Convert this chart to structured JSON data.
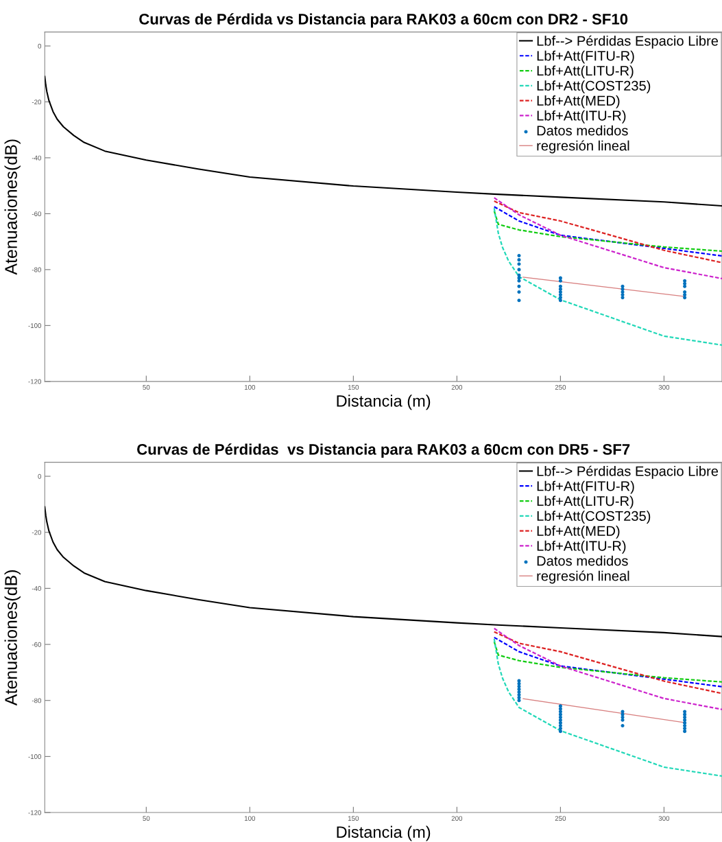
{
  "chart_data": [
    {
      "type": "line",
      "title": "Curvas de Pérdida vs Distancia para RAK03 a 60cm con DR2 - SF10",
      "xlabel": "Distancia (m)",
      "ylabel": "Atenuaciones(dB)",
      "xlim": [
        1,
        328
      ],
      "ylim": [
        -120,
        5
      ],
      "xticks": [
        50,
        100,
        150,
        200,
        250,
        300
      ],
      "yticks": [
        0,
        -20,
        -40,
        -60,
        -80,
        -100,
        -120
      ],
      "grid": false,
      "legend": "top right",
      "series": [
        {
          "name": "Lbf--> Pérdidas Espacio Libre",
          "color": "#000000",
          "line_style": "solid",
          "x": [
            1,
            1.5,
            2,
            3,
            5,
            7,
            10,
            15,
            20,
            30,
            50,
            75,
            100,
            150,
            200,
            218,
            250,
            300,
            328
          ],
          "values": [
            -10.9,
            -14,
            -16.3,
            -19.5,
            -23.5,
            -26.2,
            -28.9,
            -32,
            -34.5,
            -37.6,
            -40.8,
            -44,
            -46.9,
            -50.1,
            -52.3,
            -53,
            -54.1,
            -55.8,
            -57.2
          ]
        },
        {
          "name": "Lbf+Att(FITU-R)",
          "color": "#0000ff",
          "line_style": "dashed",
          "x": [
            218,
            230,
            250,
            300,
            328
          ],
          "values": [
            -57.5,
            -62.6,
            -67.7,
            -72.4,
            -75.1
          ]
        },
        {
          "name": "Lbf+Att(LITU-R)",
          "color": "#11cc11",
          "line_style": "dashed",
          "x": [
            218,
            220,
            230,
            250,
            300,
            328
          ],
          "values": [
            -59,
            -63.8,
            -65.8,
            -68.2,
            -71.9,
            -73.4
          ]
        },
        {
          "name": "Lbf+Att(COST235)",
          "color": "#22d8b8",
          "line_style": "dashed",
          "x": [
            218,
            220,
            222,
            225,
            230,
            250,
            300,
            328
          ],
          "values": [
            -58,
            -67,
            -72,
            -77,
            -82.5,
            -90.8,
            -103.8,
            -107
          ]
        },
        {
          "name": "Lbf+Att(MED)",
          "color": "#dd2222",
          "line_style": "dashed",
          "x": [
            218,
            230,
            250,
            300,
            328
          ],
          "values": [
            -55.5,
            -59.6,
            -62.6,
            -73.1,
            -77.5
          ]
        },
        {
          "name": "Lbf+Att(ITU-R)",
          "color": "#cc22cc",
          "line_style": "dashed",
          "x": [
            218,
            230,
            250,
            300,
            328
          ],
          "values": [
            -54.3,
            -60.4,
            -67.7,
            -79.3,
            -83.2
          ]
        },
        {
          "name": "Datos medidos",
          "color": "#0072bd",
          "type": "scatter",
          "marker": "circle",
          "x": [
            230,
            230,
            230,
            230,
            230,
            230,
            230,
            230,
            230,
            230,
            250,
            250,
            250,
            250,
            250,
            250,
            250,
            250,
            280,
            280,
            280,
            280,
            280,
            310,
            310,
            310,
            310,
            310,
            310
          ],
          "values": [
            -75,
            -76.5,
            -78,
            -80,
            -82,
            -83,
            -84,
            -86,
            -88,
            -91,
            -83,
            -84,
            -86,
            -87,
            -88,
            -89,
            -90,
            -91,
            -86,
            -87,
            -88,
            -89,
            -90,
            -84,
            -85,
            -86,
            -88,
            -89,
            -90
          ]
        },
        {
          "name": "regresión lineal",
          "color": "#d88080",
          "line_style": "solid",
          "x": [
            232,
            310
          ],
          "values": [
            -82.7,
            -89.6
          ]
        }
      ]
    },
    {
      "type": "line",
      "title": "Curvas de Pérdidas  vs Distancia para RAK03 a 60cm con DR5 - SF7",
      "xlabel": "Distancia (m)",
      "ylabel": "Atenuaciones(dB)",
      "xlim": [
        1,
        328
      ],
      "ylim": [
        -120,
        5
      ],
      "xticks": [
        50,
        100,
        150,
        200,
        250,
        300
      ],
      "yticks": [
        0,
        -20,
        -40,
        -60,
        -80,
        -100,
        -120
      ],
      "grid": false,
      "legend": "top right",
      "series": [
        {
          "name": "Lbf--> Pérdidas Espacio Libre",
          "color": "#000000",
          "line_style": "solid",
          "x": [
            1,
            1.5,
            2,
            3,
            5,
            7,
            10,
            15,
            20,
            30,
            50,
            75,
            100,
            150,
            200,
            218,
            250,
            300,
            328
          ],
          "values": [
            -10.9,
            -14,
            -16.3,
            -19.5,
            -23.5,
            -26.2,
            -28.9,
            -32,
            -34.5,
            -37.6,
            -40.8,
            -44,
            -46.9,
            -50.1,
            -52.3,
            -53,
            -54.1,
            -55.8,
            -57.2
          ]
        },
        {
          "name": "Lbf+Att(FITU-R)",
          "color": "#0000ff",
          "line_style": "dashed",
          "x": [
            218,
            230,
            250,
            300,
            328
          ],
          "values": [
            -57.5,
            -62.6,
            -67.7,
            -72.4,
            -75.1
          ]
        },
        {
          "name": "Lbf+Att(LITU-R)",
          "color": "#11cc11",
          "line_style": "dashed",
          "x": [
            218,
            220,
            230,
            250,
            300,
            328
          ],
          "values": [
            -59,
            -63.8,
            -65.8,
            -68.2,
            -71.9,
            -73.4
          ]
        },
        {
          "name": "Lbf+Att(COST235)",
          "color": "#22d8b8",
          "line_style": "dashed",
          "x": [
            218,
            220,
            222,
            225,
            230,
            250,
            300,
            328
          ],
          "values": [
            -58,
            -67,
            -72,
            -77,
            -82.5,
            -90.8,
            -103.8,
            -107
          ]
        },
        {
          "name": "Lbf+Att(MED)",
          "color": "#dd2222",
          "line_style": "dashed",
          "x": [
            218,
            230,
            250,
            300,
            328
          ],
          "values": [
            -55.5,
            -59.6,
            -62.6,
            -73.1,
            -77.5
          ]
        },
        {
          "name": "Lbf+Att(ITU-R)",
          "color": "#cc22cc",
          "line_style": "dashed",
          "x": [
            218,
            230,
            250,
            300,
            328
          ],
          "values": [
            -54.3,
            -60.4,
            -67.7,
            -79.3,
            -83.2
          ]
        },
        {
          "name": "Datos medidos",
          "color": "#0072bd",
          "type": "scatter",
          "marker": "circle",
          "x": [
            230,
            230,
            230,
            230,
            230,
            230,
            230,
            230,
            250,
            250,
            250,
            250,
            250,
            250,
            250,
            250,
            250,
            250,
            280,
            280,
            280,
            280,
            280,
            310,
            310,
            310,
            310,
            310,
            310,
            310,
            310
          ],
          "values": [
            -73,
            -74,
            -75,
            -76,
            -77,
            -78,
            -79,
            -80,
            -82,
            -83,
            -84,
            -85,
            -86,
            -87,
            -88,
            -89,
            -90,
            -91,
            -84,
            -85,
            -86,
            -87,
            -89,
            -84,
            -85,
            -86,
            -87,
            -88,
            -89,
            -90,
            -91
          ]
        },
        {
          "name": "regresión lineal",
          "color": "#d88080",
          "line_style": "solid",
          "x": [
            232,
            310
          ],
          "values": [
            -79.4,
            -87.9
          ]
        }
      ]
    }
  ]
}
